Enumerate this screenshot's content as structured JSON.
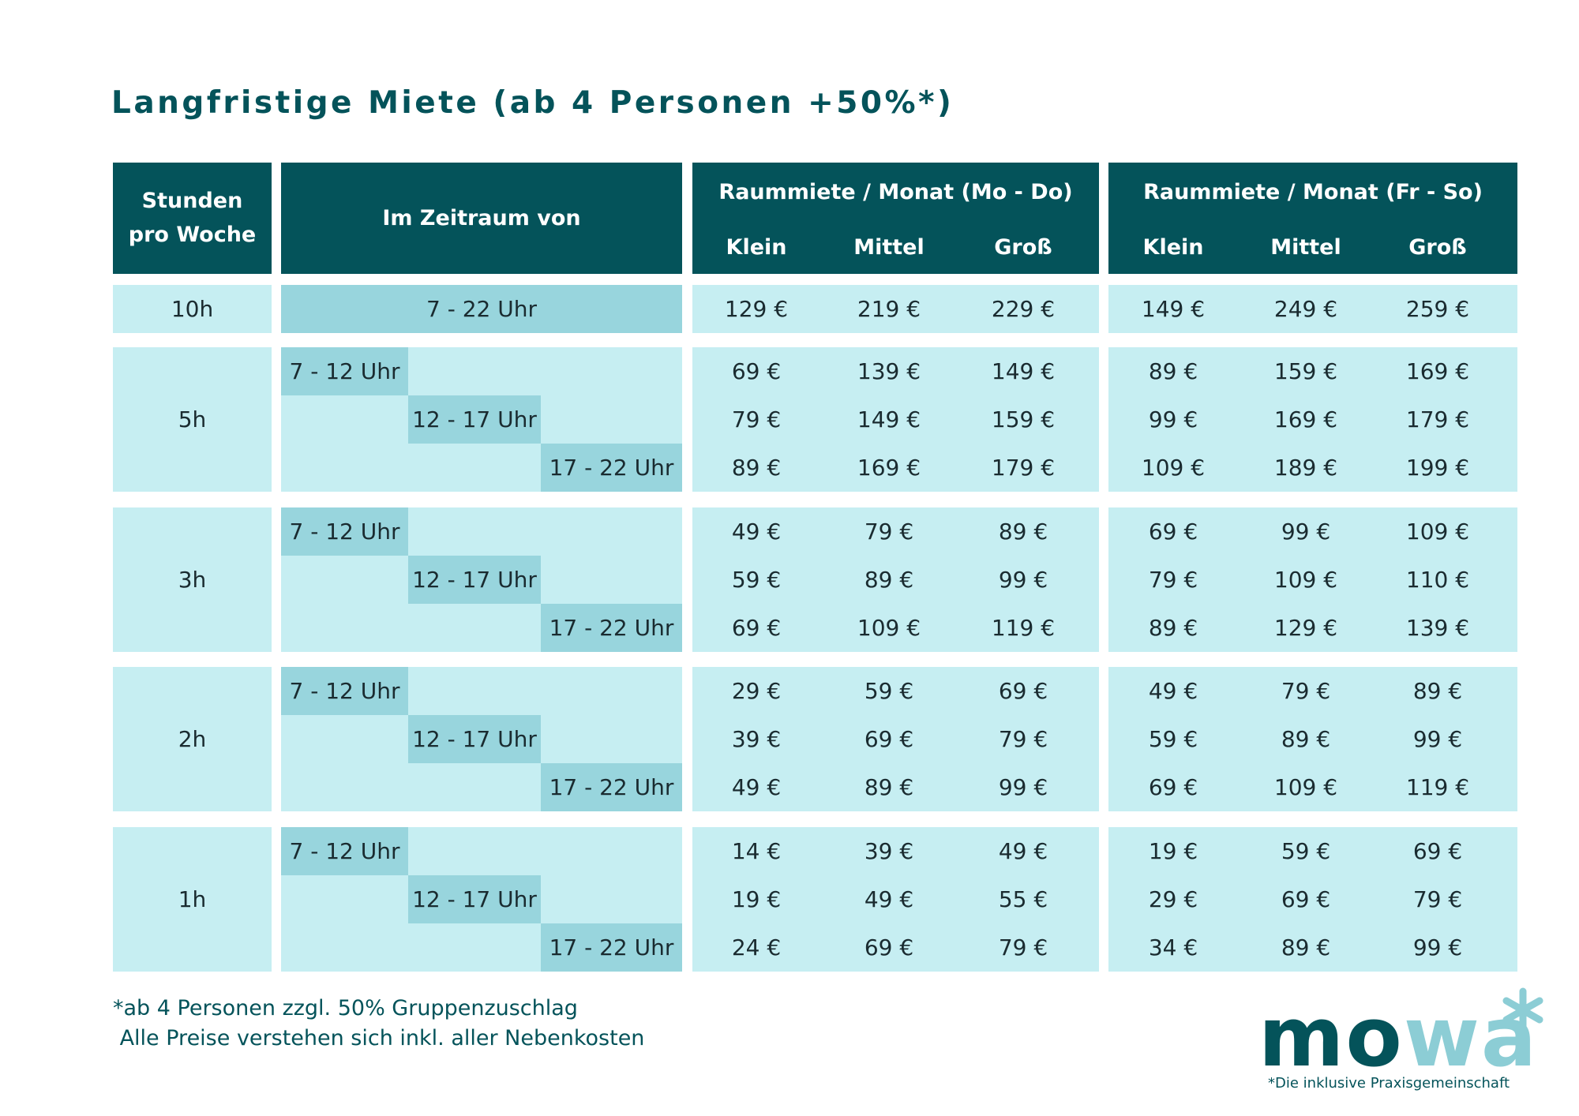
{
  "title": "Langfristige Miete (ab 4 Personen +50%*)",
  "header": {
    "hours_line1": "Stunden",
    "hours_line2": "pro Woche",
    "period": "Im Zeitraum von",
    "group_weekday": "Raummiete / Monat (Mo - Do)",
    "group_weekend": "Raummiete / Monat (Fr - So)",
    "sizes": [
      "Klein",
      "Mittel",
      "Groß",
      "Klein",
      "Mittel",
      "Groß"
    ]
  },
  "rows": [
    {
      "hours": "10h",
      "slots": [
        {
          "time": "7 - 22 Uhr",
          "prices": [
            "129 €",
            "219 €",
            "229 €",
            "149 €",
            "249 €",
            "259 €"
          ]
        }
      ]
    },
    {
      "hours": "5h",
      "slots": [
        {
          "time": "7 - 12 Uhr",
          "prices": [
            "69 €",
            "139 €",
            "149 €",
            "89 €",
            "159 €",
            "169 €"
          ]
        },
        {
          "time": "12 - 17 Uhr",
          "prices": [
            "79 €",
            "149 €",
            "159 €",
            "99 €",
            "169 €",
            "179 €"
          ]
        },
        {
          "time": "17 - 22 Uhr",
          "prices": [
            "89 €",
            "169 €",
            "179 €",
            "109 €",
            "189 €",
            "199 €"
          ]
        }
      ]
    },
    {
      "hours": "3h",
      "slots": [
        {
          "time": "7 - 12 Uhr",
          "prices": [
            "49 €",
            "79 €",
            "89 €",
            "69 €",
            "99 €",
            "109 €"
          ]
        },
        {
          "time": "12 - 17 Uhr",
          "prices": [
            "59 €",
            "89 €",
            "99 €",
            "79 €",
            "109 €",
            "110 €"
          ]
        },
        {
          "time": "17 - 22 Uhr",
          "prices": [
            "69 €",
            "109 €",
            "119 €",
            "89 €",
            "129 €",
            "139 €"
          ]
        }
      ]
    },
    {
      "hours": "2h",
      "slots": [
        {
          "time": "7 - 12 Uhr",
          "prices": [
            "29 €",
            "59 €",
            "69 €",
            "49 €",
            "79 €",
            "89 €"
          ]
        },
        {
          "time": "12 - 17 Uhr",
          "prices": [
            "39 €",
            "69 €",
            "79 €",
            "59 €",
            "89 €",
            "99 €"
          ]
        },
        {
          "time": "17 - 22 Uhr",
          "prices": [
            "49 €",
            "89 €",
            "99 €",
            "69 €",
            "109 €",
            "119 €"
          ]
        }
      ]
    },
    {
      "hours": "1h",
      "slots": [
        {
          "time": "7 - 12 Uhr",
          "prices": [
            "14 €",
            "39 €",
            "49 €",
            "19 €",
            "59 €",
            "69 €"
          ]
        },
        {
          "time": "12 - 17 Uhr",
          "prices": [
            "19 €",
            "49 €",
            "55 €",
            "29 €",
            "69 €",
            "79 €"
          ]
        },
        {
          "time": "17 - 22 Uhr",
          "prices": [
            "24 €",
            "69 €",
            "79 €",
            "34 €",
            "89 €",
            "99 €"
          ]
        }
      ]
    }
  ],
  "footnote": {
    "line1": "*ab 4 Personen zzgl. 50% Gruppenzuschlag",
    "line2": " Alle Preise verstehen sich inkl. aller Nebenkosten"
  },
  "logo": {
    "part1": "mo",
    "part2": "wa",
    "tagline": "*Die inklusive Praxisgemeinschaft"
  },
  "colors": {
    "header_bg": "#04535a",
    "cell_bg": "#c6eef2",
    "highlight_bg": "#98d5dd",
    "title": "#04535a",
    "logo_accent": "#8ccdd5"
  }
}
